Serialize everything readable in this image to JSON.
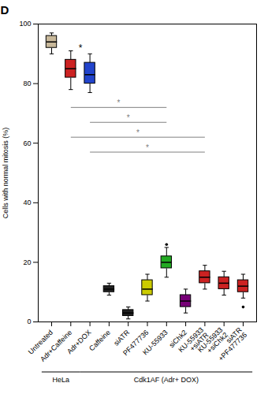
{
  "chart_data": {
    "type": "box",
    "title": "D",
    "ylabel": "Cells with normal mitosis (%)",
    "ylim": [
      0,
      100
    ],
    "yticks": [
      0,
      20,
      40,
      60,
      80,
      100
    ],
    "grid": false,
    "categories": [
      "Untreated",
      "Adr+Caffeine",
      "Adr+DOX",
      "Caffeine",
      "siATR",
      "PF477736",
      "KU-55933",
      "siChk2",
      "KU-55933\n+siATR",
      "KU-55933\n+siChk2",
      "siATR\n+PF477736"
    ],
    "whisker_low": [
      90,
      78,
      77,
      9,
      1,
      7,
      15,
      3,
      11,
      9,
      8
    ],
    "q1": [
      92,
      82,
      80,
      10,
      2,
      9,
      18,
      5,
      13,
      11,
      10
    ],
    "median": [
      94,
      85,
      83,
      11,
      3,
      11,
      20,
      7,
      15,
      13,
      12
    ],
    "q3": [
      96,
      88,
      87,
      12,
      4,
      14,
      22,
      9,
      17,
      15,
      14
    ],
    "whisker_high": [
      97,
      91,
      90,
      13,
      5,
      16,
      25,
      11,
      19,
      17,
      16
    ],
    "fliers": [
      [],
      [],
      [],
      [],
      [],
      [],
      [
        26
      ],
      [],
      [],
      [],
      [
        5
      ]
    ],
    "colors": [
      "#c8b89a",
      "#cc2222",
      "#2244cc",
      "#222222",
      "#222222",
      "#cccc00",
      "#22aa22",
      "#770077",
      "#cc2222",
      "#cc2222",
      "#cc2222"
    ],
    "significance": [
      {
        "from": "Adr+Caffeine",
        "to": "KU-55933",
        "y": 72,
        "label": "*"
      },
      {
        "from": "Adr+DOX",
        "to": "KU-55933",
        "y": 67,
        "label": "*"
      },
      {
        "from": "Adr+Caffeine",
        "to": "KU-55933\n+siATR",
        "y": 62,
        "label": "*"
      },
      {
        "from": "Adr+DOX",
        "to": "KU-55933\n+siATR",
        "y": 57,
        "label": "*"
      }
    ],
    "annotations": [
      {
        "between": [
          "Adr+Caffeine",
          "Adr+DOX"
        ],
        "y": 91,
        "label": "*"
      }
    ],
    "groups": [
      {
        "label": "HeLa",
        "from": "Untreated",
        "to": "Adr+Caffeine"
      },
      {
        "label": "Cdk1AF (Adr+ DOX)",
        "from": "Adr+DOX",
        "to": "siATR\n+PF477736"
      }
    ]
  }
}
